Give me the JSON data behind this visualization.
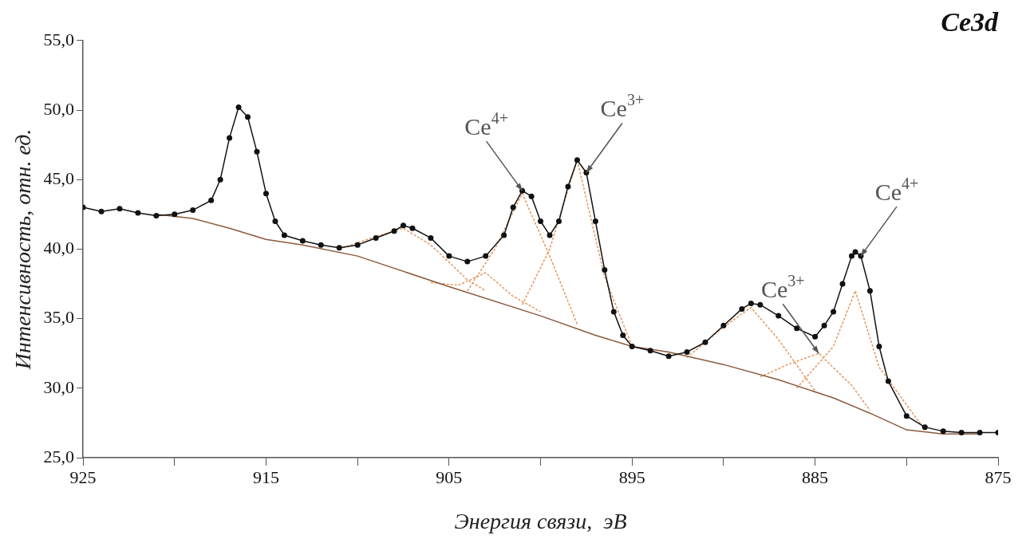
{
  "chart_data": {
    "type": "line",
    "title": "Ce3d",
    "xlabel": "Энергия связи,  эВ",
    "ylabel": "Интенсивность, отн. ед.",
    "xlim": [
      925,
      875
    ],
    "xticks": [
      925,
      {
        "value": 920,
        "label": null
      },
      915,
      {
        "value": 910,
        "label": null
      },
      905,
      {
        "value": 900,
        "label": null
      },
      895,
      {
        "value": 890,
        "label": null
      },
      885,
      {
        "value": 880,
        "label": null
      },
      875
    ],
    "ylim": [
      25,
      55
    ],
    "yticks": [
      {
        "value": 25,
        "label": "25,0"
      },
      {
        "value": 30,
        "label": "30,0"
      },
      {
        "value": 35,
        "label": "35,0"
      },
      {
        "value": 40,
        "label": "40,0"
      },
      {
        "value": 45,
        "label": "45,0"
      },
      {
        "value": 50,
        "label": "50,0"
      },
      {
        "value": 55,
        "label": "55,0"
      }
    ],
    "grid": false,
    "legend": false,
    "series": [
      {
        "color": "#111111",
        "marker": "circle",
        "line_style": "solid",
        "x": [
          925,
          924,
          923,
          922,
          921,
          920,
          919,
          918,
          917.5,
          917,
          916.5,
          916,
          915.5,
          915,
          914.5,
          914,
          913,
          912,
          911,
          910,
          909,
          908,
          907.5,
          907,
          906,
          905,
          904,
          903,
          902,
          901.5,
          901,
          900.5,
          900,
          899.5,
          899,
          898.5,
          898,
          897.5,
          897,
          896.5,
          896,
          895.5,
          895,
          894,
          893,
          892,
          891,
          890,
          889,
          888.5,
          888,
          887,
          886,
          885,
          884.5,
          884,
          883.5,
          883,
          882.8,
          882.5,
          882,
          881.5,
          881,
          880,
          879,
          878,
          877,
          876,
          875
        ],
        "values": [
          43.0,
          42.7,
          42.9,
          42.6,
          42.4,
          42.5,
          42.8,
          43.5,
          45.0,
          48.0,
          50.2,
          49.5,
          47.0,
          44.0,
          42.0,
          41.0,
          40.6,
          40.3,
          40.1,
          40.3,
          40.8,
          41.3,
          41.7,
          41.5,
          40.8,
          39.5,
          39.1,
          39.5,
          41.0,
          43.0,
          44.2,
          43.8,
          42.0,
          41.0,
          42.0,
          44.5,
          46.4,
          45.5,
          42.0,
          38.5,
          35.5,
          33.8,
          33.0,
          32.7,
          32.3,
          32.6,
          33.3,
          34.5,
          35.7,
          36.1,
          36.0,
          35.2,
          34.3,
          33.7,
          34.5,
          35.5,
          37.5,
          39.5,
          39.8,
          39.5,
          37.0,
          33.0,
          30.5,
          28.0,
          27.2,
          26.9,
          26.8,
          26.8,
          26.8
        ]
      },
      {
        "color": "#8b5a3c",
        "line_style": "solid",
        "x": [
          921,
          919,
          917,
          915,
          913,
          910,
          905,
          900,
          897,
          895,
          893,
          890,
          887,
          884,
          882,
          880,
          878,
          876
        ],
        "values": [
          42.5,
          42.2,
          41.5,
          40.7,
          40.3,
          39.5,
          37.3,
          35.2,
          33.8,
          33.0,
          32.6,
          31.7,
          30.6,
          29.3,
          28.2,
          27.0,
          26.7,
          26.7
        ]
      },
      {
        "color": "#e8945a",
        "line_style": "dashed",
        "x": [
          911,
          909,
          907.5,
          906,
          904,
          903
        ],
        "values": [
          40.0,
          40.9,
          41.5,
          40.3,
          37.8,
          37.0
        ]
      },
      {
        "color": "#e8945a",
        "line_style": "dashed",
        "x": [
          906,
          904.5,
          903,
          901.5,
          900
        ],
        "values": [
          37.6,
          37.4,
          38.3,
          36.6,
          35.5
        ]
      },
      {
        "color": "#e8945a",
        "line_style": "dashed",
        "x": [
          904,
          902.5,
          901,
          899.5,
          898
        ],
        "values": [
          37.0,
          40.0,
          44.0,
          39.5,
          34.6
        ]
      },
      {
        "color": "#e8945a",
        "line_style": "dashed",
        "x": [
          901,
          899.5,
          898,
          896.5,
          895
        ],
        "values": [
          36.0,
          40.0,
          46.4,
          38.0,
          33.0
        ]
      },
      {
        "color": "#e8945a",
        "line_style": "dashed",
        "x": [
          892,
          890,
          888.5,
          887,
          885
        ],
        "values": [
          32.2,
          34.4,
          35.8,
          33.5,
          29.8
        ]
      },
      {
        "color": "#e8945a",
        "line_style": "dashed",
        "x": [
          888,
          886.5,
          884.8,
          883,
          882
        ],
        "values": [
          30.8,
          31.7,
          32.5,
          30.2,
          28.4
        ]
      },
      {
        "color": "#e8945a",
        "line_style": "dashed",
        "x": [
          886,
          884,
          882.8,
          881.5,
          879
        ],
        "values": [
          30.0,
          33.0,
          37.0,
          31.5,
          27.0
        ]
      }
    ],
    "annotations": [
      {
        "text": "Ce$^{4+}$",
        "x": 901,
        "y": 44.2
      },
      {
        "text": "Ce$^{3+}$",
        "x": 897.5,
        "y": 45.5
      },
      {
        "text": "Ce$^{3+}$",
        "x": 884.8,
        "y": 32.5
      },
      {
        "text": "Ce$^{4+}$",
        "x": 882.5,
        "y": 39.5
      }
    ]
  }
}
